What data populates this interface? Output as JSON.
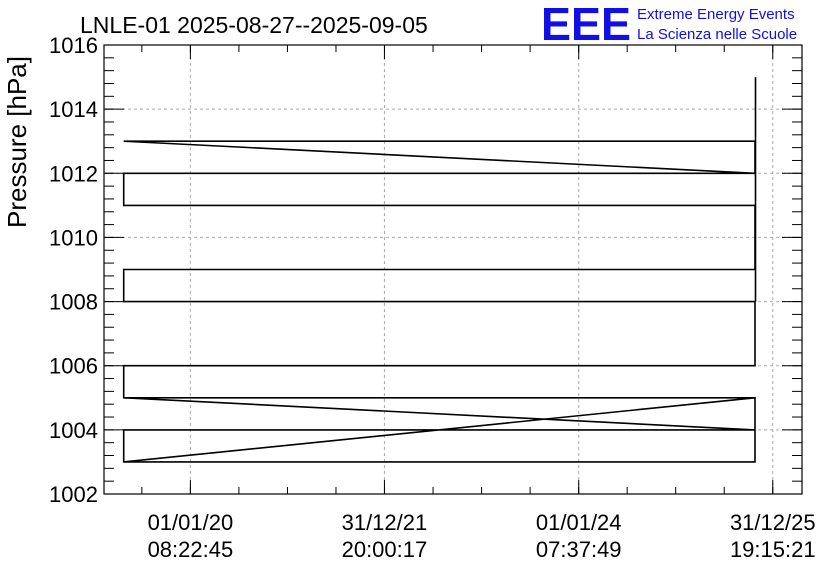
{
  "chart_data": {
    "type": "line",
    "title": "LNLE-01 2025-08-27--2025-09-05",
    "xlabel": "",
    "ylabel": "Pressure [hPa]",
    "ylim": [
      1002,
      1016
    ],
    "xlim": [
      "2019-02-10",
      "2026-04-20"
    ],
    "x_ticks": [
      {
        "date": "01/01/20",
        "time": "08:22:45",
        "value": "2020-01-01"
      },
      {
        "date": "31/12/21",
        "time": "20:00:17",
        "value": "2021-12-31"
      },
      {
        "date": "01/01/24",
        "time": "07:37:49",
        "value": "2024-01-01"
      },
      {
        "date": "31/12/25",
        "time": "19:15:21",
        "value": "2025-12-31"
      }
    ],
    "y_ticks": [
      1002,
      1004,
      1006,
      1008,
      1010,
      1012,
      1014,
      1016
    ],
    "grid": true,
    "series": [
      {
        "points": [
          [
            "2019-04-25",
            1003
          ],
          [
            "2025-10-25",
            1003
          ],
          [
            "2025-10-25",
            1005
          ],
          [
            "2019-04-25",
            1003
          ],
          [
            "2019-04-25",
            1004
          ],
          [
            "2025-10-25",
            1004
          ],
          [
            "2019-04-25",
            1005
          ],
          [
            "2025-10-25",
            1005
          ],
          [
            "2025-10-25",
            1004
          ],
          [
            "2019-04-25",
            1005
          ],
          [
            "2019-04-25",
            1006
          ],
          [
            "2025-10-25",
            1006
          ],
          [
            "2025-10-25",
            1008
          ],
          [
            "2019-04-25",
            1008
          ],
          [
            "2019-04-25",
            1009
          ],
          [
            "2025-10-25",
            1009
          ],
          [
            "2025-10-25",
            1011
          ],
          [
            "2019-04-25",
            1011
          ],
          [
            "2019-04-25",
            1012
          ],
          [
            "2025-10-25",
            1012
          ],
          [
            "2019-04-25",
            1013
          ],
          [
            "2025-10-25",
            1013
          ],
          [
            "2025-10-25",
            1012
          ]
        ]
      },
      {
        "points": [
          [
            "2025-10-27",
            1008
          ],
          [
            "2025-10-27",
            1015
          ]
        ]
      }
    ]
  },
  "logo": {
    "mark": "EEE",
    "line1": "Extreme Energy Events",
    "line2": "La Scienza nelle Scuole",
    "color": "#1010e6"
  }
}
